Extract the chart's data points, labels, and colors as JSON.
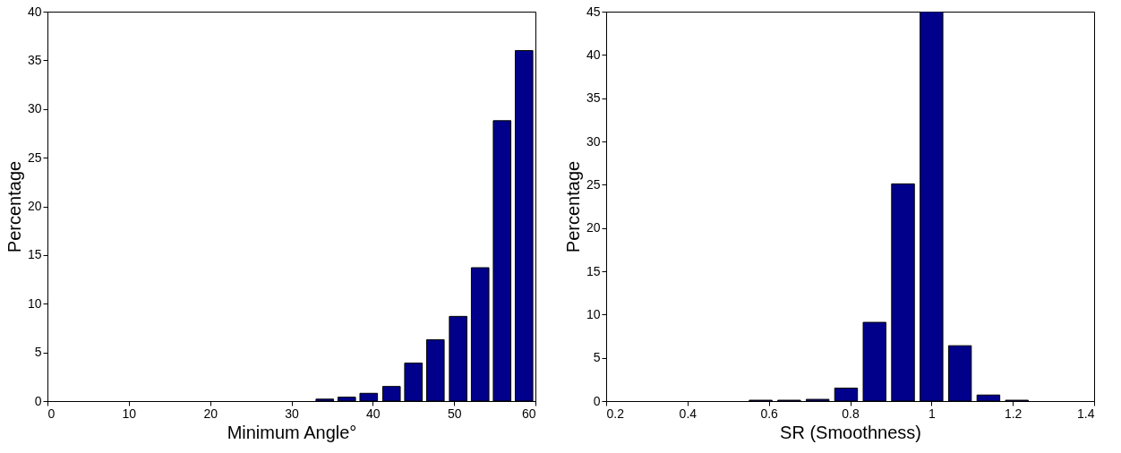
{
  "chart_data": [
    {
      "type": "bar",
      "xlabel": "Minimum Angle°",
      "ylabel": "Percentage",
      "color": "#00008b",
      "x": [
        34.1,
        36.8,
        39.5,
        42.3,
        45.0,
        47.7,
        50.5,
        53.2,
        55.9,
        58.6
      ],
      "values": [
        0.2,
        0.4,
        0.8,
        1.5,
        3.9,
        6.3,
        8.7,
        13.7,
        28.8,
        36
      ],
      "xlim": [
        0,
        60
      ],
      "xticks": [
        0,
        10,
        20,
        30,
        40,
        50,
        60
      ],
      "ylim": [
        0,
        40
      ],
      "yticks": [
        0,
        5,
        10,
        15,
        20,
        25,
        30,
        35,
        40
      ],
      "grid": false
    },
    {
      "type": "bar",
      "xlabel": "SR (Smoothness)",
      "ylabel": "Percentage",
      "color": "#00008b",
      "x": [
        0.58,
        0.65,
        0.72,
        0.79,
        0.86,
        0.93,
        1.0,
        1.07,
        1.14,
        1.21
      ],
      "values": [
        0.1,
        0.1,
        0.2,
        1.5,
        9.1,
        25.1,
        45,
        6.4,
        0.7,
        0.1
      ],
      "xlim": [
        0.2,
        1.4
      ],
      "xticks": [
        0.2,
        0.4,
        0.6,
        0.8,
        1,
        1.2,
        1.4
      ],
      "ylim": [
        0,
        45
      ],
      "yticks": [
        0,
        5,
        10,
        15,
        20,
        25,
        30,
        35,
        40,
        45
      ],
      "grid": false
    }
  ]
}
